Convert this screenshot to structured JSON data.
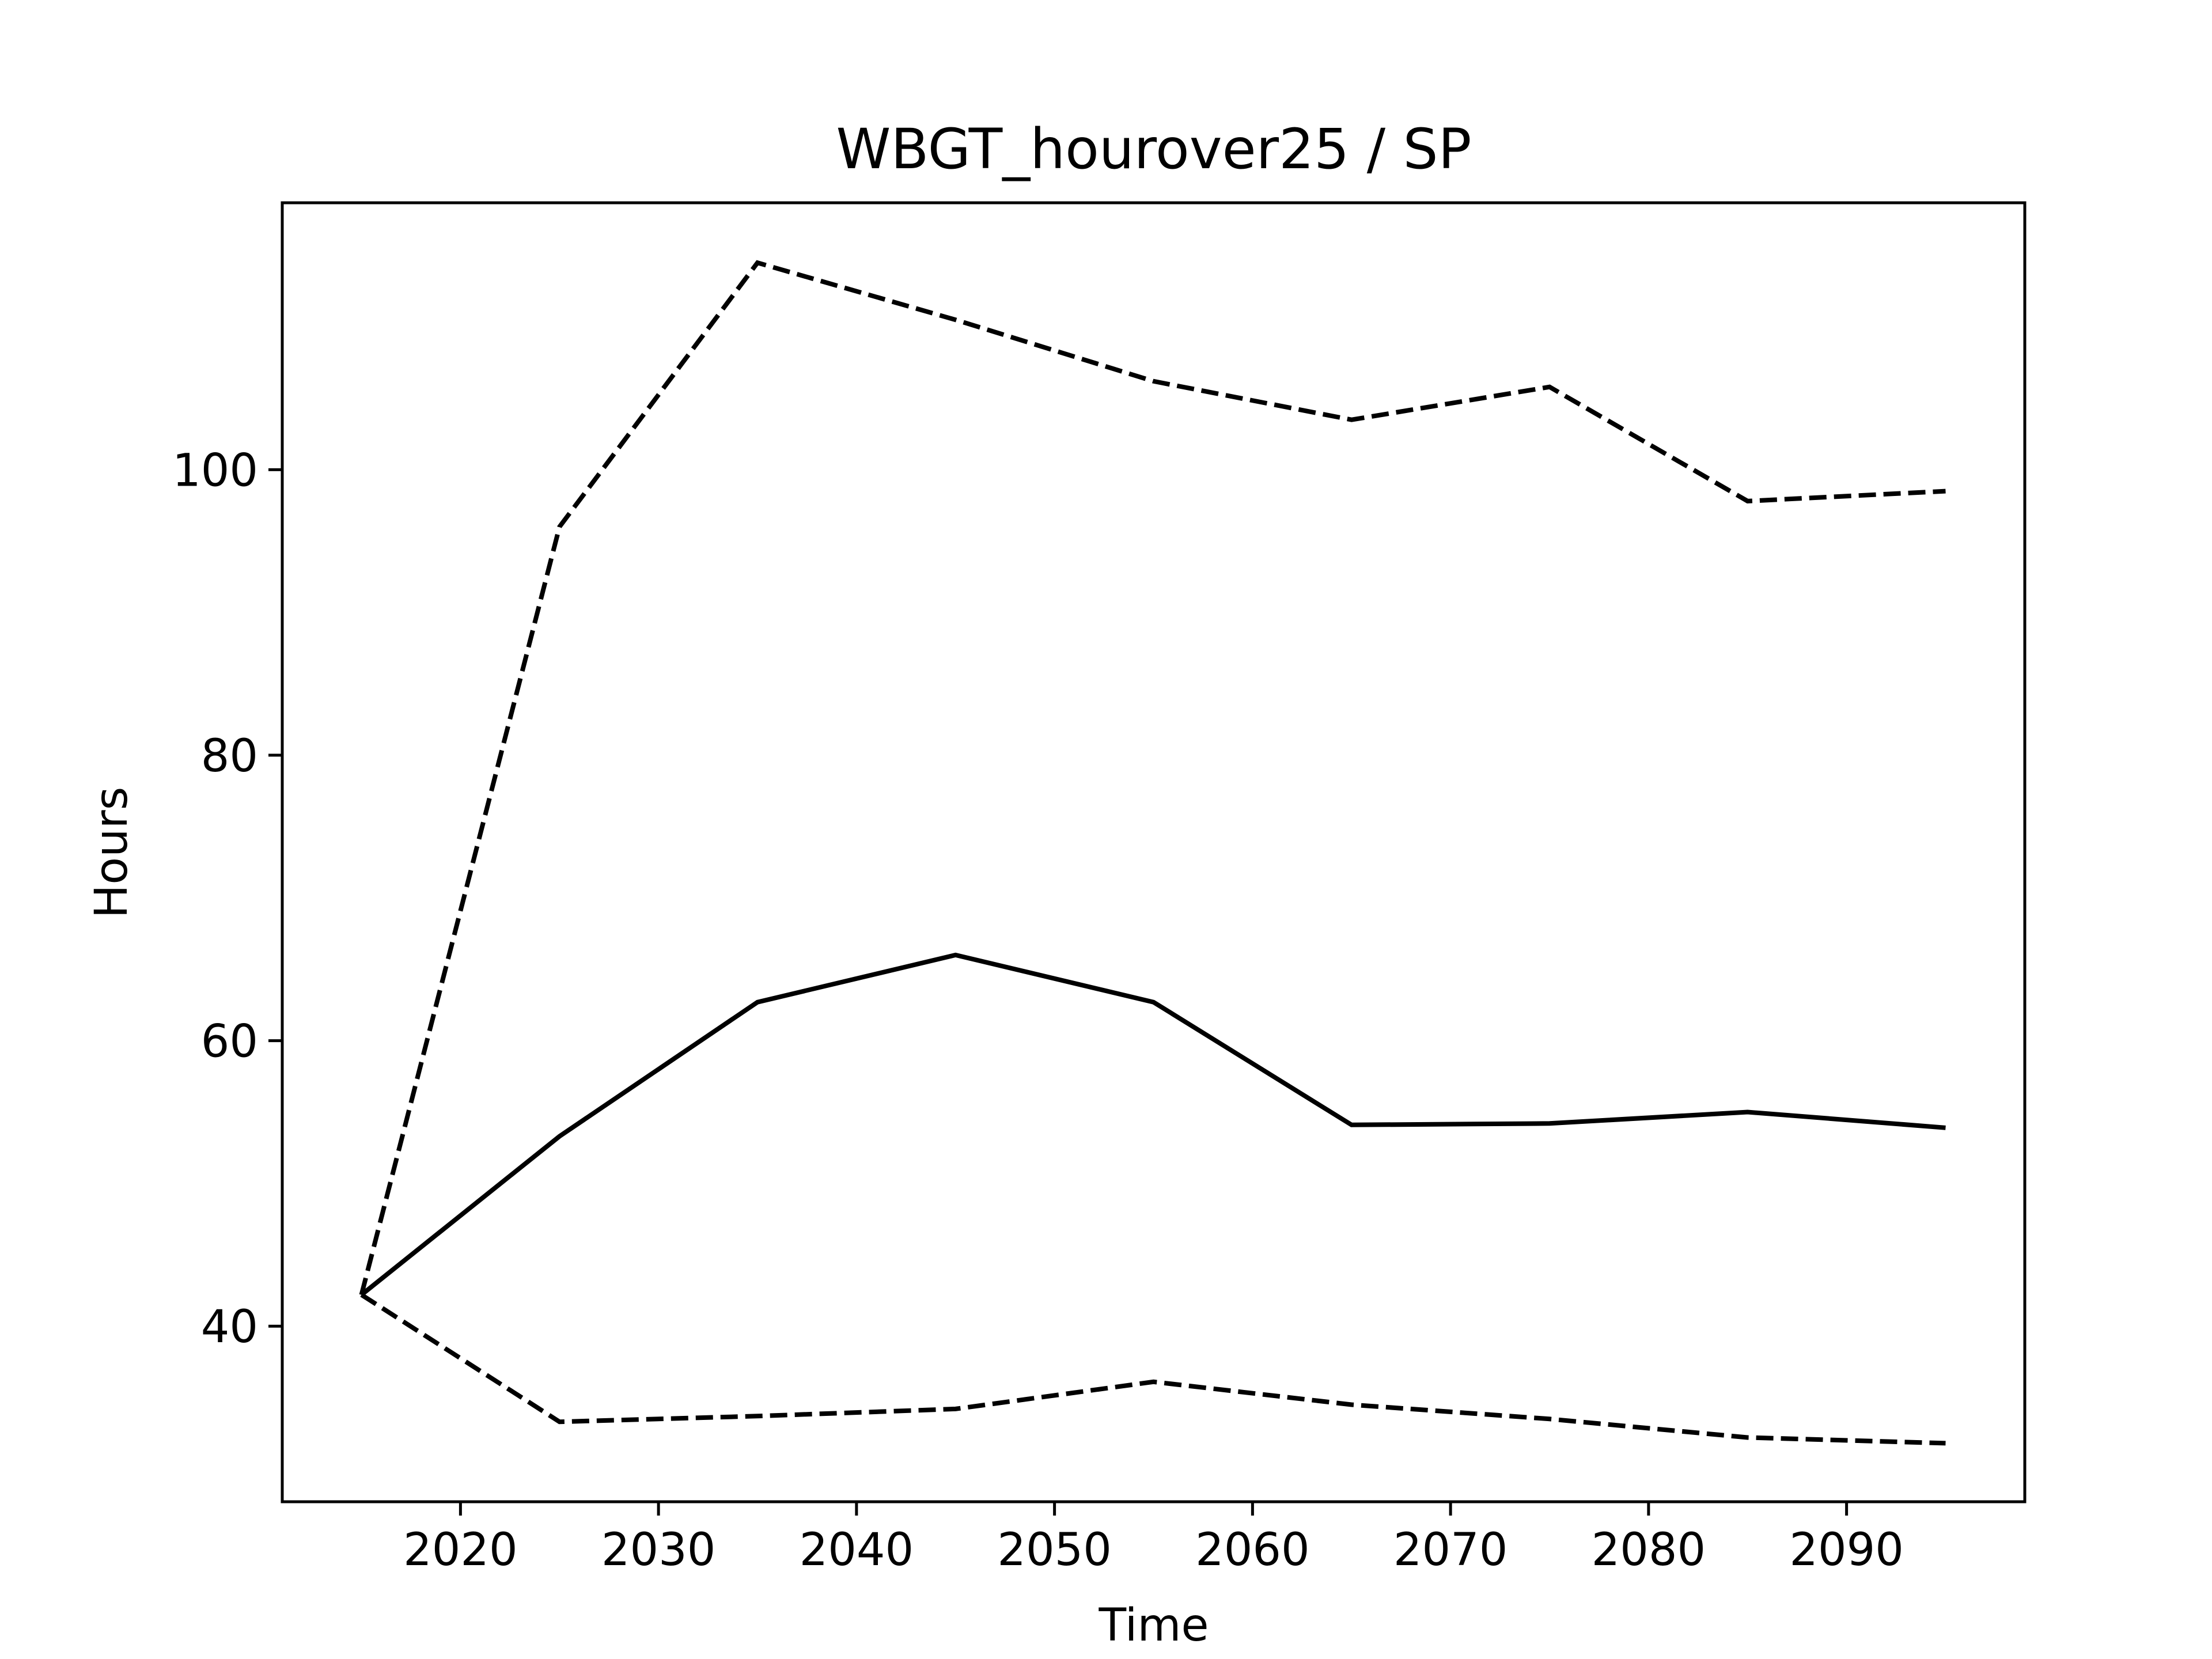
{
  "chart_data": {
    "type": "line",
    "title": "WBGT_hourover25 / SP",
    "xlabel": "Time",
    "ylabel": "Hours",
    "xlim": [
      2011,
      2099
    ],
    "ylim": [
      27.7,
      118.7
    ],
    "xticks": [
      2020,
      2030,
      2040,
      2050,
      2060,
      2070,
      2080,
      2090
    ],
    "yticks": [
      40,
      60,
      80,
      100
    ],
    "grid": false,
    "x": [
      2015,
      2025,
      2035,
      2045,
      2055,
      2065,
      2075,
      2085,
      2095
    ],
    "series": [
      {
        "style": "solid",
        "color": "#000000",
        "values": [
          42.2,
          53.3,
          62.7,
          66.0,
          62.7,
          54.1,
          54.2,
          55.0,
          53.9
        ]
      },
      {
        "style": "dashed",
        "color": "#000000",
        "values": [
          42.2,
          96.0,
          114.5,
          110.5,
          106.2,
          103.5,
          105.8,
          97.8,
          98.5
        ]
      },
      {
        "style": "dashed",
        "color": "#000000",
        "values": [
          42.2,
          33.3,
          33.7,
          34.2,
          36.1,
          34.5,
          33.5,
          32.2,
          31.8
        ]
      }
    ]
  }
}
